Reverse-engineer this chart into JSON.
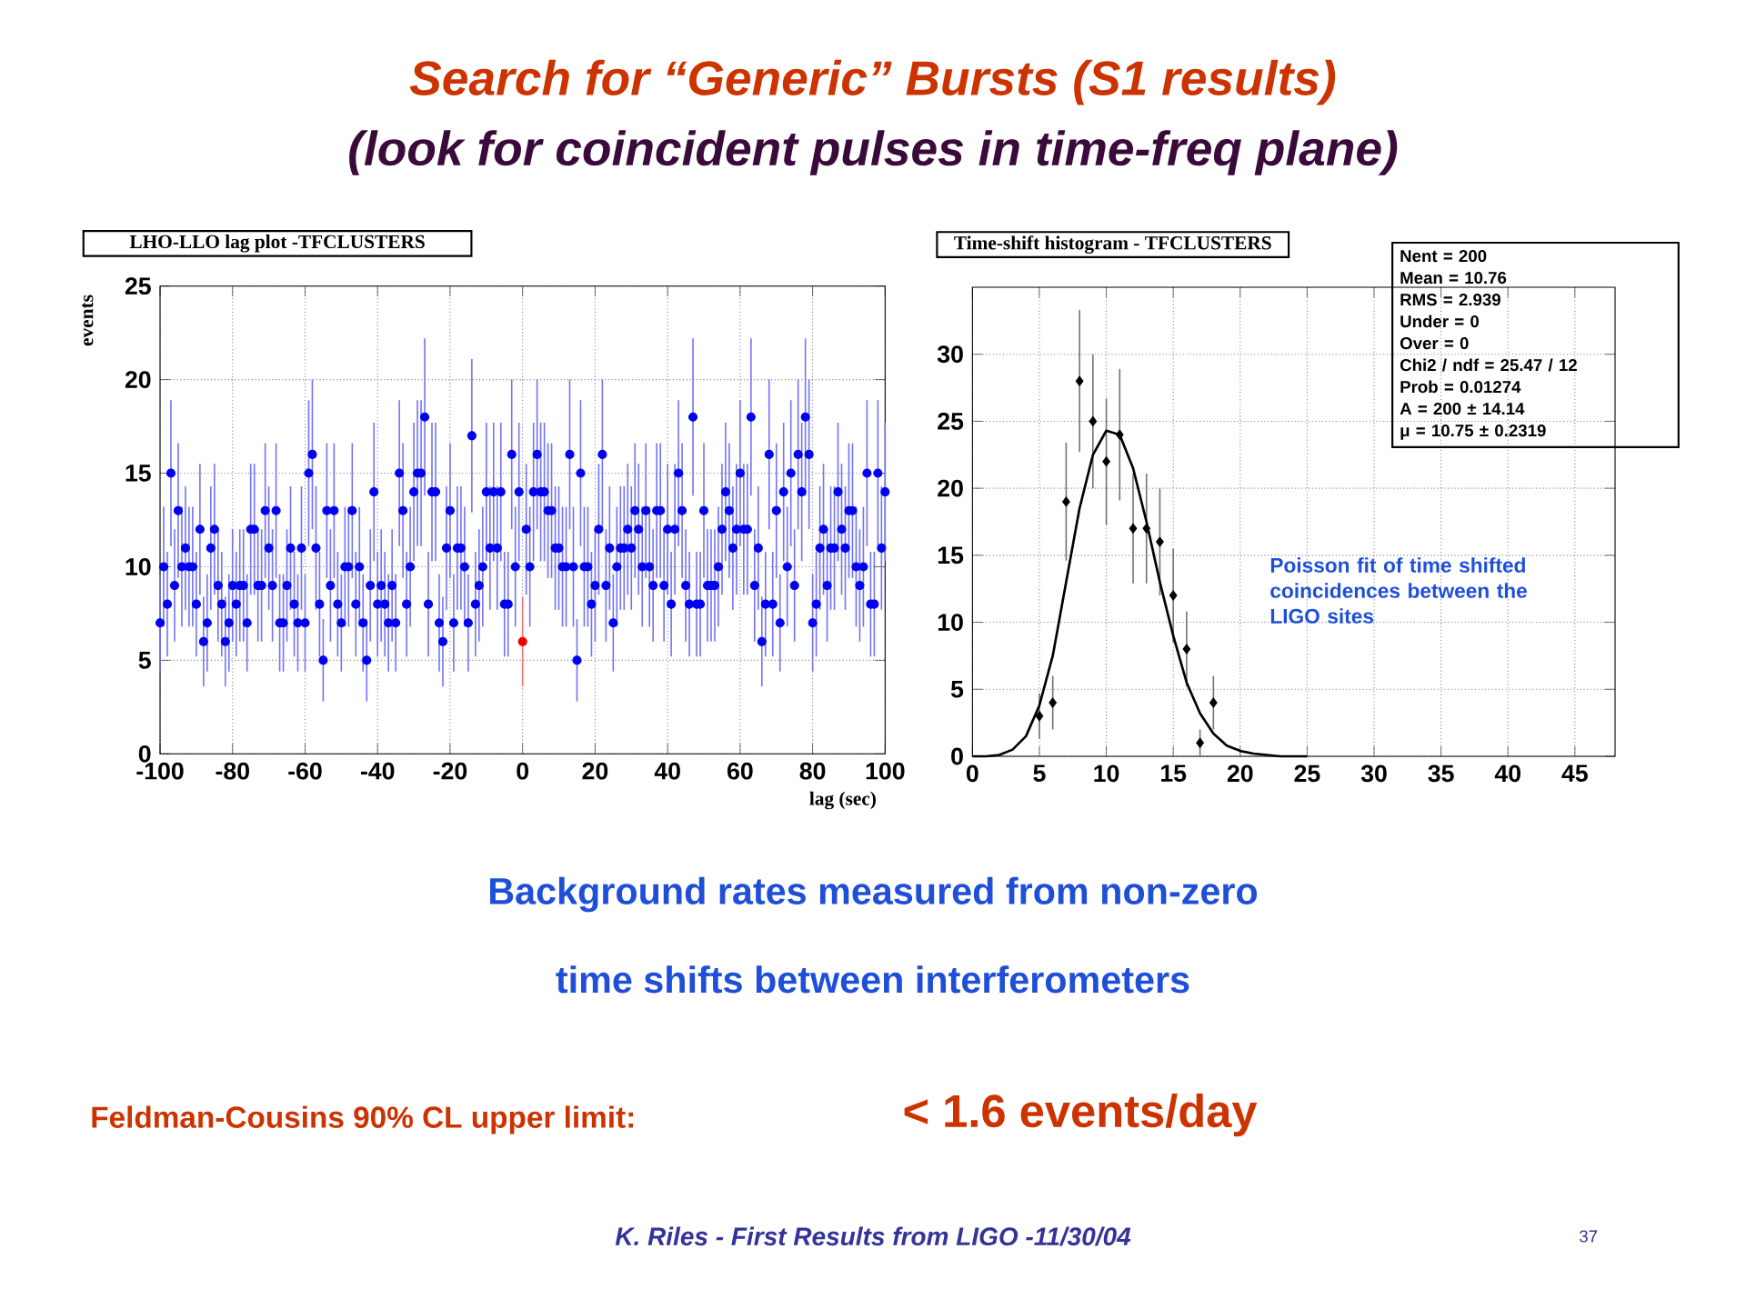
{
  "chart_data": [
    {
      "type": "scatter",
      "title": "LHO-LLO lag plot -TFCLUSTERS",
      "xlabel": "lag (sec)",
      "ylabel": "events",
      "xlim": [
        -100,
        100
      ],
      "ylim": [
        0,
        25
      ],
      "xticks": [
        -100,
        -80,
        -60,
        -40,
        -20,
        0,
        20,
        40,
        60,
        80,
        100
      ],
      "yticks": [
        0,
        5,
        10,
        15,
        20,
        25
      ],
      "grid": true,
      "marker": "circle",
      "annotations": [
        "Search for “Generic” Bursts (S1 results)",
        "(look for coincident pulses in time-freq plane)",
        "Background rates measured from non-zero",
        "time shifts between interferometers",
        "Feldman-Cousins 90% CL upper limit:",
        "< 1.6  events/day",
        "K. Riles - First Results from LIGO -11/30/04",
        "37"
      ],
      "series": [
        {
          "color": "#0000ee",
          "x": [
            -100,
            -99,
            -98,
            -97,
            -96,
            -95,
            -94,
            -93,
            -92,
            -91,
            -90,
            -89,
            -88,
            -87,
            -86,
            -85,
            -84,
            -83,
            -82,
            -81,
            -80,
            -79,
            -78,
            -77,
            -76,
            -75,
            -74,
            -73,
            -72,
            -71,
            -70,
            -69,
            -68,
            -67,
            -66,
            -65,
            -64,
            -63,
            -62,
            -61,
            -60,
            -59,
            -58,
            -57,
            -56,
            -55,
            -54,
            -53,
            -52,
            -51,
            -50,
            -49,
            -48,
            -47,
            -46,
            -45,
            -44,
            -43,
            -42,
            -41,
            -40,
            -39,
            -38,
            -37,
            -36,
            -35,
            -34,
            -33,
            -32,
            -31,
            -30,
            -29,
            -28,
            -27,
            -26,
            -25,
            -24,
            -23,
            -22,
            -21,
            -20,
            -19,
            -18,
            -17,
            -16,
            -15,
            -14,
            -13,
            -12,
            -11,
            -10,
            -9,
            -8,
            -7,
            -6,
            -5,
            -4,
            -3,
            -2,
            -1,
            1,
            2,
            3,
            4,
            5,
            6,
            7,
            8,
            9,
            10,
            11,
            12,
            13,
            14,
            15,
            16,
            17,
            18,
            19,
            20,
            21,
            22,
            23,
            24,
            25,
            26,
            27,
            28,
            29,
            30,
            31,
            32,
            33,
            34,
            35,
            36,
            37,
            38,
            39,
            40,
            41,
            42,
            43,
            44,
            45,
            46,
            47,
            48,
            49,
            50,
            51,
            52,
            53,
            54,
            55,
            56,
            57,
            58,
            59,
            60,
            61,
            62,
            63,
            64,
            65,
            66,
            67,
            68,
            69,
            70,
            71,
            72,
            73,
            74,
            75,
            76,
            77,
            78,
            79,
            80,
            81,
            82,
            83,
            84,
            85,
            86,
            87,
            88,
            89,
            90,
            91,
            92,
            93,
            94,
            95,
            96,
            97,
            98,
            99,
            100
          ],
          "values": [
            7,
            10,
            8,
            15,
            9,
            13,
            10,
            11,
            10,
            10,
            8,
            12,
            6,
            7,
            11,
            12,
            9,
            8,
            6,
            7,
            9,
            8,
            9,
            9,
            7,
            12,
            12,
            9,
            9,
            13,
            11,
            9,
            13,
            7,
            7,
            9,
            11,
            8,
            7,
            11,
            7,
            15,
            16,
            11,
            8,
            5,
            13,
            9,
            13,
            8,
            7,
            10,
            10,
            13,
            8,
            10,
            7,
            5,
            9,
            14,
            8,
            9,
            8,
            7,
            9,
            7,
            15,
            13,
            8,
            10,
            14,
            15,
            15,
            18,
            8,
            14,
            14,
            7,
            6,
            11,
            13,
            7,
            11,
            11,
            10,
            7,
            17,
            8,
            9,
            10,
            14,
            11,
            14,
            11,
            14,
            8,
            8,
            16,
            10,
            14,
            12,
            10,
            14,
            16,
            14,
            14,
            13,
            13,
            11,
            11,
            10,
            10,
            16,
            10,
            5,
            15,
            10,
            10,
            8,
            9,
            12,
            16,
            9,
            11,
            7,
            10,
            11,
            11,
            12,
            11,
            13,
            12,
            10,
            13,
            10,
            9,
            13,
            13,
            9,
            12,
            8,
            12,
            15,
            13,
            9,
            8,
            18,
            8,
            8,
            13,
            9,
            9,
            9,
            10,
            12,
            14,
            13,
            11,
            12,
            15,
            12,
            12,
            18,
            9,
            11,
            6,
            8,
            16,
            8,
            13,
            7,
            14,
            10,
            15,
            9,
            16,
            14,
            18,
            16,
            7,
            8,
            11,
            12,
            9,
            11,
            11,
            14,
            12,
            11,
            13,
            13,
            10,
            9,
            10,
            15,
            8,
            8,
            15,
            11,
            14
          ],
          "errors": [
            2.6,
            3.2,
            2.8,
            3.9,
            3,
            3.6,
            3.2,
            3.3,
            3.2,
            3.2,
            2.8,
            3.5,
            2.4,
            2.6,
            3.3,
            3.5,
            3,
            2.8,
            2.4,
            2.6,
            3,
            2.8,
            3,
            3,
            2.6,
            3.5,
            3.5,
            3,
            3,
            3.6,
            3.3,
            3,
            3.6,
            2.6,
            2.6,
            3,
            3.3,
            2.8,
            2.6,
            3.3,
            2.6,
            3.9,
            4,
            3.3,
            2.8,
            2.2,
            3.6,
            3,
            3.6,
            2.8,
            2.6,
            3.2,
            3.2,
            3.6,
            2.8,
            3.2,
            2.6,
            2.2,
            3,
            3.7,
            2.8,
            3,
            2.8,
            2.6,
            3,
            2.6,
            3.9,
            3.6,
            2.8,
            3.2,
            3.7,
            3.9,
            3.9,
            4.2,
            2.8,
            3.7,
            3.7,
            2.6,
            2.4,
            3.3,
            3.6,
            2.6,
            3.3,
            3.3,
            3.2,
            2.6,
            4.1,
            2.8,
            3,
            3.2,
            3.7,
            3.3,
            3.7,
            3.3,
            3.7,
            2.8,
            2.8,
            4,
            3.2,
            3.7,
            3.5,
            3.2,
            3.7,
            4,
            3.7,
            3.7,
            3.6,
            3.6,
            3.3,
            3.3,
            3.2,
            3.2,
            4,
            3.2,
            2.2,
            3.9,
            3.2,
            3.2,
            2.8,
            3,
            3.5,
            4,
            3,
            3.3,
            2.6,
            3.2,
            3.3,
            3.3,
            3.5,
            3.3,
            3.6,
            3.5,
            3.2,
            3.6,
            3.2,
            3,
            3.6,
            3.6,
            3,
            3.5,
            2.8,
            3.5,
            3.9,
            3.6,
            3,
            2.8,
            4.2,
            2.8,
            2.8,
            3.6,
            3,
            3,
            3,
            3.2,
            3.5,
            3.7,
            3.6,
            3.3,
            3.5,
            3.9,
            3.5,
            3.5,
            4.2,
            3,
            3.3,
            2.4,
            2.8,
            4,
            2.8,
            3.6,
            2.6,
            3.7,
            3.2,
            3.9,
            3,
            4,
            3.7,
            4.2,
            4,
            2.6,
            2.8,
            3.3,
            3.5,
            3,
            3.3,
            3.3,
            3.7,
            3.5,
            3.3,
            3.6,
            3.6,
            3.2,
            3,
            3.2,
            3.9,
            2.8,
            2.8,
            3.9,
            3.3,
            3.7
          ]
        },
        {
          "color": "#ee0000",
          "x": [
            0
          ],
          "values": [
            6
          ],
          "errors": [
            2.4
          ]
        }
      ]
    },
    {
      "type": "scatter",
      "title": "Time-shift histogram - TFCLUSTERS",
      "xlim": [
        0,
        48
      ],
      "ylim": [
        0,
        35
      ],
      "xticks": [
        0,
        5,
        10,
        15,
        20,
        25,
        30,
        35,
        40,
        45
      ],
      "yticks": [
        0,
        5,
        10,
        15,
        20,
        25,
        30
      ],
      "grid": true,
      "marker": "diamond",
      "annotations": [
        "Nent = 200",
        "Mean  = 10.76",
        "RMS  = 2.939",
        "Under =     0",
        "Over =     0",
        "Chi2 / ndf = 25.47 / 12",
        "Prob  = 0.01274",
        "A       =   200 ± 14.14",
        "μ       = 10.75 ± 0.2319",
        "Poisson fit of time shifted coincidences between the  LIGO sites"
      ],
      "series": [
        {
          "color": "#000000",
          "x": [
            5,
            6,
            7,
            8,
            9,
            10,
            11,
            12,
            13,
            14,
            15,
            16,
            17,
            18
          ],
          "values": [
            3,
            4,
            19,
            28,
            25,
            22,
            24,
            17,
            17,
            16,
            12,
            8,
            1,
            4
          ],
          "errors": [
            1.7,
            2,
            4.4,
            5.3,
            5,
            4.7,
            4.9,
            4.1,
            4.1,
            4,
            3.5,
            2.8,
            1,
            2
          ]
        },
        {
          "type": "line",
          "marker": "none",
          "color": "#000000",
          "x": [
            0,
            1,
            2,
            3,
            4,
            5,
            6,
            7,
            8,
            9,
            10,
            11,
            12,
            13,
            14,
            15,
            16,
            17,
            18,
            19,
            20,
            21,
            22,
            23,
            24,
            25
          ],
          "values": [
            0,
            0,
            0.1,
            0.5,
            1.5,
            3.8,
            7.5,
            13,
            18.5,
            22.5,
            24.3,
            24,
            21.5,
            17.5,
            13,
            9,
            5.5,
            3.2,
            1.7,
            0.8,
            0.4,
            0.2,
            0.1,
            0,
            0,
            0
          ]
        }
      ]
    }
  ]
}
